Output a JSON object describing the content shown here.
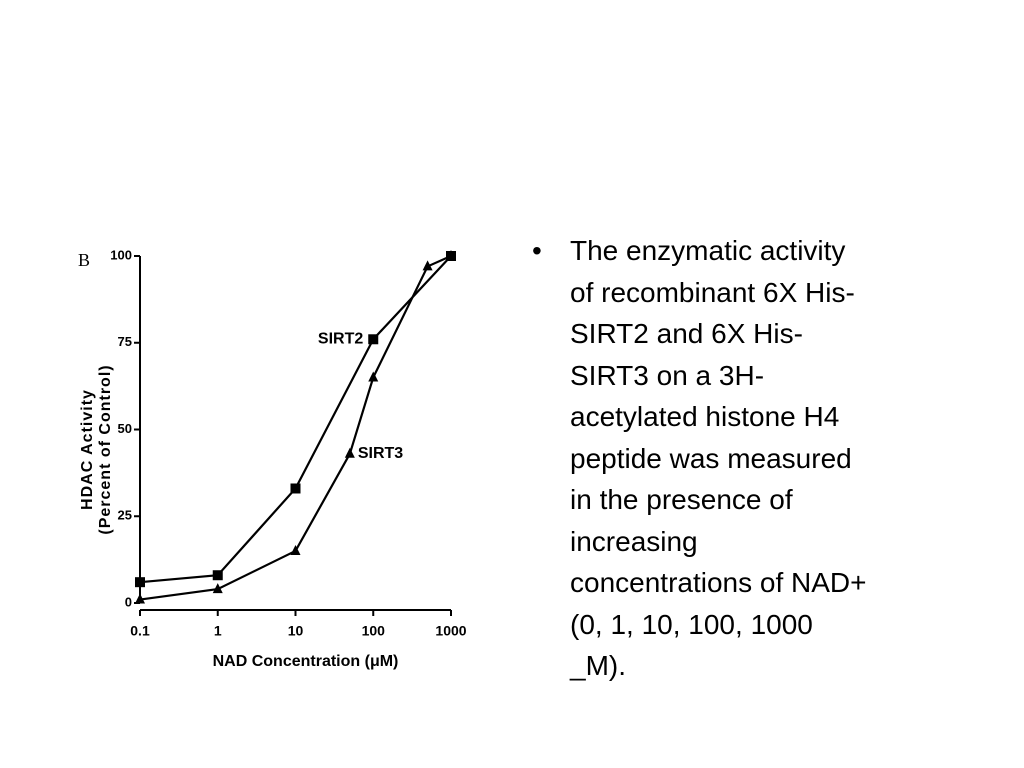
{
  "chart_data": {
    "type": "line",
    "panel_label": "B",
    "y_label_lines": [
      "HDAC Activity",
      "(Percent of Control)"
    ],
    "x_label": "NAD Concentration (μM)",
    "x_scale": "log",
    "xlim": [
      0.1,
      1000
    ],
    "xticks": [
      0.1,
      1,
      10,
      100,
      1000
    ],
    "ylim": [
      0,
      100
    ],
    "yticks": [
      0,
      25,
      50,
      75,
      100
    ],
    "series": [
      {
        "name": "SIRT2",
        "color": "#000000",
        "marker": "square",
        "x": [
          0.1,
          1,
          10,
          100,
          1000
        ],
        "values": [
          6,
          8,
          33,
          76,
          100
        ]
      },
      {
        "name": "SIRT3",
        "color": "#000000",
        "marker": "triangle",
        "x": [
          0.1,
          1,
          10,
          50,
          100,
          500,
          1000
        ],
        "values": [
          1,
          4,
          15,
          43,
          65,
          97,
          100
        ]
      }
    ]
  },
  "bullet_lines": [
    "The enzymatic activity",
    "of recombinant 6X His-",
    "SIRT2 and 6X His-",
    "SIRT3 on a 3H-",
    "acetylated histone H4",
    "peptide was measured",
    "in the presence of",
    "increasing",
    "concentrations of NAD+",
    "(0, 1, 10, 100, 1000",
    "_M)."
  ]
}
